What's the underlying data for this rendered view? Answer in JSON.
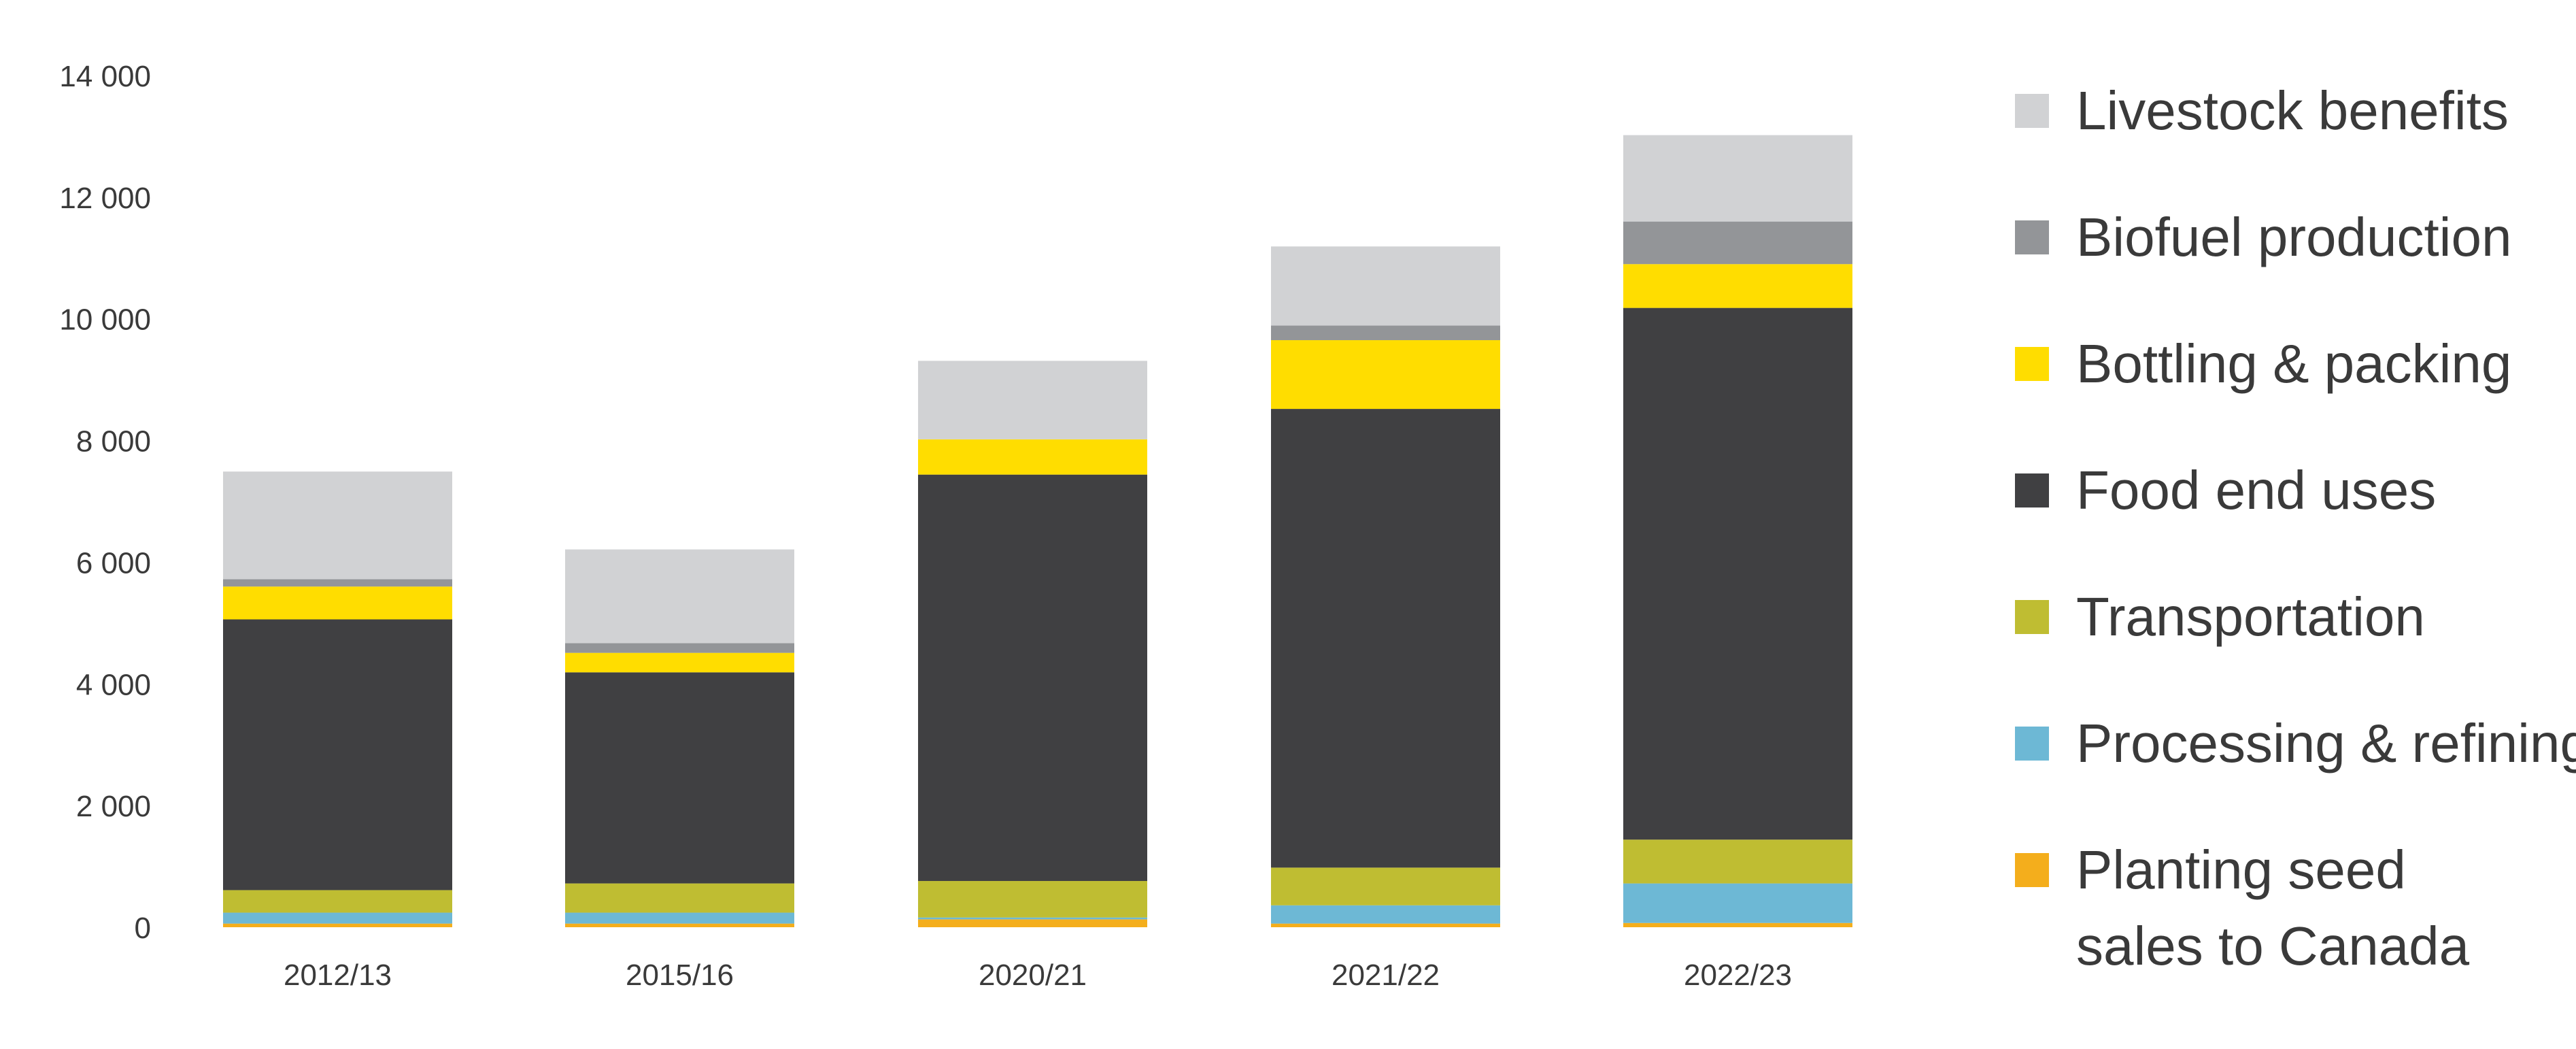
{
  "chart_data": {
    "type": "bar",
    "stacked": true,
    "categories": [
      "2012/13",
      "2015/16",
      "2020/21",
      "2021/22",
      "2022/23"
    ],
    "ylim": [
      0,
      14000
    ],
    "yticks": [
      0,
      2000,
      4000,
      6000,
      8000,
      10000,
      12000,
      14000
    ],
    "ytick_labels": [
      "0",
      "2 000",
      "4 000",
      "6 000",
      "8 000",
      "10 000",
      "12 000",
      "14 000"
    ],
    "grid": false,
    "legend_position": "right",
    "series": [
      {
        "name": "Planting seed sales to Canada",
        "legend_lines": [
          "Planting seed",
          "sales to Canada"
        ],
        "color": "#f4ae1c",
        "values": [
          60,
          60,
          130,
          60,
          70
        ]
      },
      {
        "name": "Processing & refining",
        "legend_lines": [
          "Processing & refining"
        ],
        "color": "#6db8d5",
        "values": [
          180,
          180,
          30,
          300,
          650
        ]
      },
      {
        "name": "Transportation",
        "legend_lines": [
          "Transportation"
        ],
        "color": "#bfbd32",
        "values": [
          370,
          480,
          600,
          620,
          720
        ]
      },
      {
        "name": "Food end uses",
        "legend_lines": [
          "Food end uses"
        ],
        "color": "#404042",
        "values": [
          4450,
          3470,
          6680,
          7540,
          8740
        ]
      },
      {
        "name": "Bottling & packing",
        "legend_lines": [
          "Bottling & packing"
        ],
        "color": "#ffdd00",
        "values": [
          540,
          320,
          580,
          1130,
          720
        ]
      },
      {
        "name": "Biofuel production",
        "legend_lines": [
          "Biofuel production"
        ],
        "color": "#939598",
        "values": [
          120,
          160,
          0,
          240,
          700
        ]
      },
      {
        "name": "Livestock benefits",
        "legend_lines": [
          "Livestock benefits"
        ],
        "color": "#d1d2d4",
        "values": [
          1770,
          1540,
          1290,
          1300,
          1420
        ]
      }
    ]
  }
}
